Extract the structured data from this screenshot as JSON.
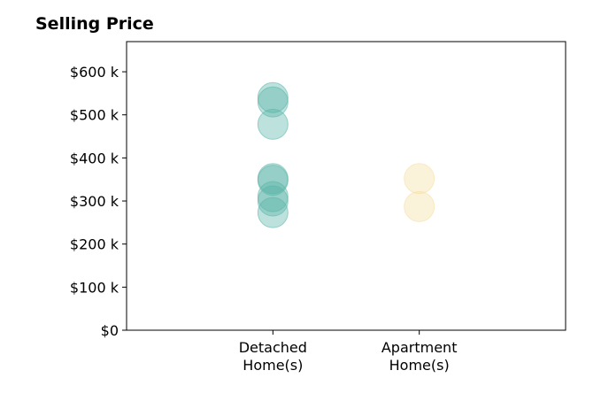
{
  "chart_data": {
    "type": "scatter",
    "title": "Selling Price",
    "xlabel": "",
    "ylabel": "",
    "categories": [
      {
        "lines": [
          "Detached",
          "Home(s)"
        ]
      },
      {
        "lines": [
          "Apartment",
          "Home(s)"
        ]
      }
    ],
    "x_range": [
      -1,
      2
    ],
    "ylim": [
      0,
      670000
    ],
    "yticks": [
      {
        "value": 0,
        "label": "$0"
      },
      {
        "value": 100000,
        "label": "$100 k"
      },
      {
        "value": 200000,
        "label": "$200 k"
      },
      {
        "value": 300000,
        "label": "$300 k"
      },
      {
        "value": 400000,
        "label": "$400 k"
      },
      {
        "value": 500000,
        "label": "$500 k"
      },
      {
        "value": 600000,
        "label": "$600 k"
      }
    ],
    "grid": false,
    "series": [
      {
        "category_index": 0,
        "color": "#5ab5a8",
        "values": [
          540000,
          530000,
          478000,
          352000,
          348000,
          310000,
          300000,
          273000
        ]
      },
      {
        "category_index": 1,
        "color": "#f5dea3",
        "values": [
          352000,
          287000
        ]
      }
    ]
  }
}
